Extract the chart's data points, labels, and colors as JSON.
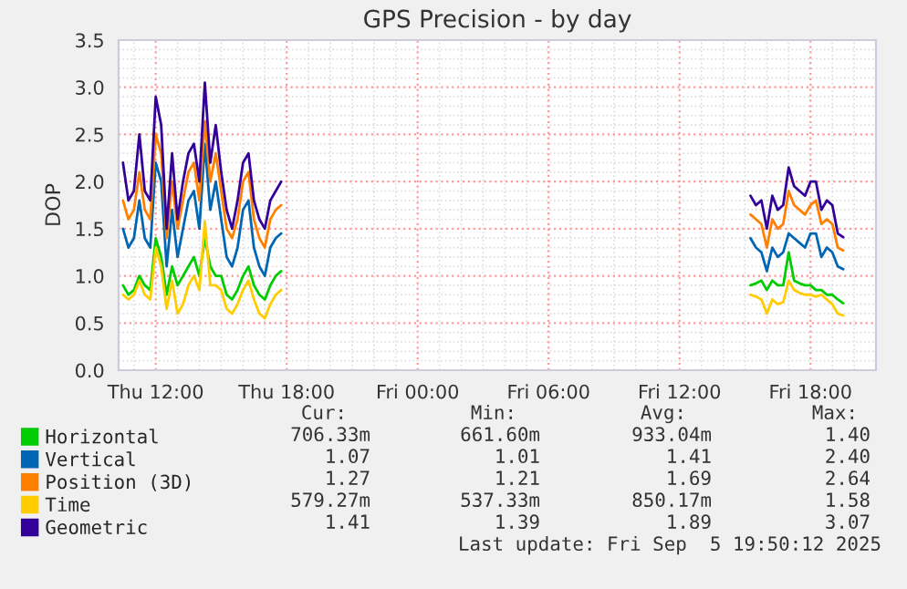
{
  "chart_data": {
    "type": "line",
    "title": "GPS Precision - by day",
    "ylabel": "DOP",
    "x": [
      "2025-09-04T10:30",
      "2025-09-04T10:45",
      "2025-09-04T11:00",
      "2025-09-04T11:15",
      "2025-09-04T11:30",
      "2025-09-04T11:45",
      "2025-09-04T12:00",
      "2025-09-04T12:15",
      "2025-09-04T12:30",
      "2025-09-04T12:45",
      "2025-09-04T13:00",
      "2025-09-04T13:15",
      "2025-09-04T13:30",
      "2025-09-04T13:45",
      "2025-09-04T14:00",
      "2025-09-04T14:15",
      "2025-09-04T14:30",
      "2025-09-04T14:45",
      "2025-09-04T15:00",
      "2025-09-04T15:15",
      "2025-09-04T15:30",
      "2025-09-04T15:45",
      "2025-09-04T16:00",
      "2025-09-04T16:15",
      "2025-09-04T16:30",
      "2025-09-04T16:45",
      "2025-09-04T17:00",
      "2025-09-04T17:15",
      "2025-09-04T17:30",
      "2025-09-04T17:45",
      "2025-09-04T18:00",
      "2025-09-05T15:15",
      "2025-09-05T15:30",
      "2025-09-05T15:45",
      "2025-09-05T16:00",
      "2025-09-05T16:15",
      "2025-09-05T16:30",
      "2025-09-05T16:45",
      "2025-09-05T17:00",
      "2025-09-05T17:15",
      "2025-09-05T17:30",
      "2025-09-05T17:45",
      "2025-09-05T18:00",
      "2025-09-05T18:15",
      "2025-09-05T18:30",
      "2025-09-05T18:45",
      "2025-09-05T19:00",
      "2025-09-05T19:15",
      "2025-09-05T19:30"
    ],
    "series": [
      {
        "name": "Horizontal",
        "color": "#00cc00",
        "values": [
          0.9,
          0.8,
          0.85,
          1.0,
          0.9,
          0.85,
          1.4,
          1.2,
          0.8,
          1.1,
          0.9,
          1.0,
          1.1,
          1.2,
          1.0,
          1.4,
          1.1,
          1.0,
          1.0,
          0.8,
          0.75,
          0.85,
          1.0,
          1.1,
          0.9,
          0.8,
          0.75,
          0.9,
          1.0,
          1.05,
          null,
          0.9,
          0.92,
          0.95,
          0.85,
          0.95,
          0.9,
          0.9,
          1.25,
          0.95,
          0.92,
          0.9,
          0.9,
          0.85,
          0.85,
          0.8,
          0.8,
          0.75,
          0.71
        ]
      },
      {
        "name": "Vertical",
        "color": "#0066b3",
        "values": [
          1.5,
          1.3,
          1.4,
          1.8,
          1.4,
          1.3,
          2.2,
          2.0,
          1.1,
          1.7,
          1.2,
          1.5,
          1.8,
          1.9,
          1.5,
          2.4,
          1.7,
          2.0,
          1.6,
          1.2,
          1.1,
          1.3,
          1.7,
          1.8,
          1.3,
          1.1,
          1.0,
          1.3,
          1.4,
          1.45,
          null,
          1.4,
          1.3,
          1.25,
          1.05,
          1.3,
          1.2,
          1.25,
          1.45,
          1.4,
          1.35,
          1.3,
          1.45,
          1.45,
          1.2,
          1.3,
          1.25,
          1.1,
          1.07
        ]
      },
      {
        "name": "Position (3D)",
        "color": "#ff8000",
        "values": [
          1.8,
          1.6,
          1.7,
          2.1,
          1.7,
          1.6,
          2.5,
          2.3,
          1.4,
          2.0,
          1.5,
          1.8,
          2.1,
          2.2,
          1.8,
          2.64,
          2.0,
          2.3,
          1.9,
          1.5,
          1.4,
          1.6,
          2.0,
          2.1,
          1.6,
          1.4,
          1.3,
          1.6,
          1.7,
          1.75,
          null,
          1.65,
          1.6,
          1.55,
          1.3,
          1.6,
          1.5,
          1.55,
          1.9,
          1.75,
          1.7,
          1.65,
          1.75,
          1.8,
          1.55,
          1.6,
          1.55,
          1.3,
          1.27
        ]
      },
      {
        "name": "Time",
        "color": "#ffcc00",
        "values": [
          0.8,
          0.75,
          0.8,
          0.95,
          0.8,
          0.75,
          1.3,
          1.1,
          0.65,
          0.95,
          0.6,
          0.7,
          0.9,
          1.0,
          0.85,
          1.58,
          0.9,
          0.9,
          0.85,
          0.65,
          0.6,
          0.7,
          0.85,
          0.95,
          0.75,
          0.6,
          0.55,
          0.7,
          0.8,
          0.85,
          null,
          0.8,
          0.78,
          0.75,
          0.6,
          0.75,
          0.7,
          0.72,
          0.95,
          0.85,
          0.82,
          0.8,
          0.8,
          0.78,
          0.8,
          0.75,
          0.7,
          0.6,
          0.58
        ]
      },
      {
        "name": "Geometric",
        "color": "#330099",
        "values": [
          2.2,
          1.8,
          1.9,
          2.5,
          1.9,
          1.8,
          2.9,
          2.6,
          1.5,
          2.3,
          1.6,
          2.0,
          2.3,
          2.4,
          2.0,
          3.05,
          2.2,
          2.6,
          2.1,
          1.7,
          1.5,
          1.8,
          2.2,
          2.3,
          1.8,
          1.6,
          1.5,
          1.8,
          1.9,
          2.0,
          null,
          1.85,
          1.75,
          1.8,
          1.5,
          1.85,
          1.7,
          1.75,
          2.15,
          1.95,
          1.9,
          1.85,
          2.0,
          2.0,
          1.7,
          1.8,
          1.75,
          1.45,
          1.41
        ]
      }
    ],
    "xlim": [
      "2025-09-04T10:18",
      "2025-09-05T21:00"
    ],
    "xticks": [
      {
        "value": "2025-09-04T12:00",
        "label": "Thu 12:00"
      },
      {
        "value": "2025-09-04T18:00",
        "label": "Thu 18:00"
      },
      {
        "value": "2025-09-05T00:00",
        "label": "Fri 00:00"
      },
      {
        "value": "2025-09-05T06:00",
        "label": "Fri 06:00"
      },
      {
        "value": "2025-09-05T12:00",
        "label": "Fri 12:00"
      },
      {
        "value": "2025-09-05T18:00",
        "label": "Fri 18:00"
      }
    ],
    "ylim": [
      0,
      3.5
    ],
    "yticks": [
      {
        "value": 0,
        "label": "0.0"
      },
      {
        "value": 0.5,
        "label": "0.5"
      },
      {
        "value": 1,
        "label": "1.0"
      },
      {
        "value": 1.5,
        "label": "1.5"
      },
      {
        "value": 2,
        "label": "2.0"
      },
      {
        "value": 2.5,
        "label": "2.5"
      },
      {
        "value": 3,
        "label": "3.0"
      },
      {
        "value": 3.5,
        "label": "3.5"
      }
    ],
    "grid": true,
    "legend": "bottom",
    "marker": "none",
    "line_style": "solid",
    "annotations": [
      "Cur:",
      "Min:",
      "Avg:",
      "Max:",
      "706.33m",
      "661.60m",
      "933.04m",
      "1.40",
      "1.07",
      "1.01",
      "1.41",
      "2.40",
      "1.27",
      "1.21",
      "1.69",
      "2.64",
      "579.27m",
      "537.33m",
      "850.17m",
      "1.58",
      "1.41",
      "1.39",
      "1.89",
      "3.07",
      "Last update: Fri Sep  5 19:50:12 2025"
    ]
  }
}
